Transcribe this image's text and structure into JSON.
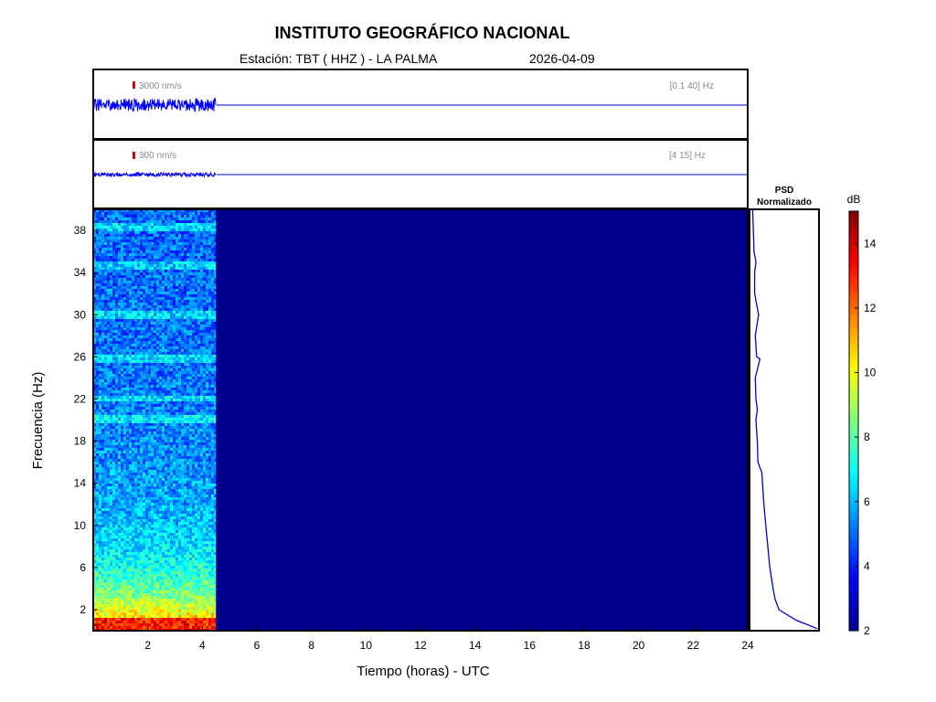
{
  "header": {
    "title": "INSTITUTO GEOGRÁFICO NACIONAL",
    "station": "Estación:  TBT ( HHZ ) - LA PALMA",
    "date": "2026-04-09"
  },
  "chart_data": {
    "type": "heatmap",
    "traces": [
      {
        "scale_label": "3000 nm/s",
        "band_label": "[0.1 40] Hz",
        "data_end_hours": 4.5
      },
      {
        "scale_label": "300 nm/s",
        "band_label": "[4 15] Hz",
        "data_end_hours": 4.5
      }
    ],
    "spectrogram": {
      "xlabel": "Tiempo (horas) - UTC",
      "ylabel": "Frecuencia  (Hz)",
      "xlim": [
        0,
        24
      ],
      "ylim": [
        0,
        40
      ],
      "x_ticks": [
        "2",
        "4",
        "6",
        "8",
        "10",
        "12",
        "14",
        "16",
        "18",
        "20",
        "22",
        "24"
      ],
      "y_ticks": [
        "2",
        "6",
        "10",
        "14",
        "18",
        "22",
        "26",
        "30",
        "34",
        "38"
      ],
      "data_end_hours": 4.5,
      "noise_bands_hz": [
        25.8,
        30.0,
        34.7,
        38.3,
        22.0,
        20.0
      ]
    },
    "psd": {
      "title_line1": "PSD",
      "title_line2": "Normalizado",
      "freq_hz": [
        0.2,
        1,
        2,
        3,
        4,
        6,
        8,
        10,
        12,
        14,
        15,
        16,
        18,
        20,
        21,
        22,
        24,
        25.8,
        26,
        28,
        30,
        32,
        34,
        35,
        36,
        38,
        40
      ],
      "level": [
        1.0,
        0.68,
        0.42,
        0.36,
        0.33,
        0.28,
        0.25,
        0.22,
        0.19,
        0.17,
        0.16,
        0.1,
        0.09,
        0.07,
        0.09,
        0.07,
        0.06,
        0.13,
        0.08,
        0.06,
        0.11,
        0.05,
        0.05,
        0.07,
        0.04,
        0.03,
        0.02
      ]
    },
    "colorbar": {
      "label": "dB",
      "ticks": [
        "2",
        "4",
        "6",
        "8",
        "10",
        "12",
        "14"
      ],
      "range": [
        2,
        15
      ]
    }
  }
}
